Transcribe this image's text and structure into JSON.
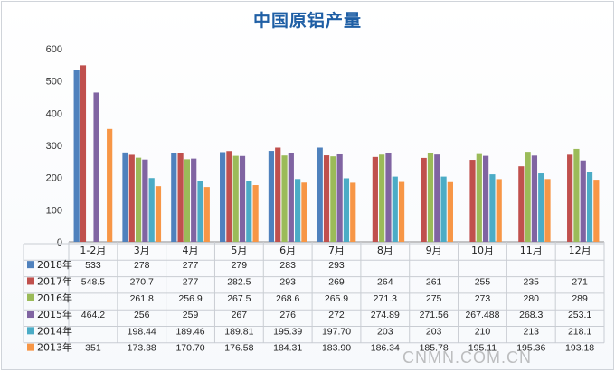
{
  "chart_data": {
    "type": "bar",
    "title": "中国原铝产量",
    "categories": [
      "1-2月",
      "3月",
      "4月",
      "5月",
      "6月",
      "7月",
      "8月",
      "9月",
      "10月",
      "11月",
      "12月"
    ],
    "ylim": [
      0,
      600
    ],
    "yticks": [
      0,
      100,
      200,
      300,
      400,
      500,
      600
    ],
    "grid": false,
    "legend_placement": "data-table-left",
    "series": [
      {
        "name": "2018年",
        "color": "#4f81bd",
        "values": [
          533,
          278,
          277,
          279,
          283,
          293,
          null,
          null,
          null,
          null,
          null
        ],
        "labels": [
          "533",
          "278",
          "277",
          "279",
          "283",
          "293",
          "",
          "",
          "",
          "",
          ""
        ]
      },
      {
        "name": "2017年",
        "color": "#c0504d",
        "values": [
          548.5,
          270.7,
          277,
          282.5,
          293,
          269,
          264,
          261,
          255,
          235,
          271
        ],
        "labels": [
          "548.5",
          "270.7",
          "277",
          "282.5",
          "293",
          "269",
          "264",
          "261",
          "255",
          "235",
          "271"
        ]
      },
      {
        "name": "2016年",
        "color": "#9bbb59",
        "values": [
          null,
          261.8,
          256.9,
          267.5,
          268.6,
          265.9,
          271.3,
          275,
          273,
          280,
          289
        ],
        "labels": [
          "",
          "261.8",
          "256.9",
          "267.5",
          "268.6",
          "265.9",
          "271.3",
          "275",
          "273",
          "280",
          "289"
        ]
      },
      {
        "name": "2015年",
        "color": "#8064a2",
        "values": [
          464.2,
          256,
          259,
          267,
          276,
          272,
          274.89,
          271.56,
          267.488,
          268.3,
          253.1
        ],
        "labels": [
          "464.2",
          "256",
          "259",
          "267",
          "276",
          "272",
          "274.89",
          "271.56",
          "267.488",
          "268.3",
          "253.1"
        ]
      },
      {
        "name": "2014年",
        "color": "#4bacc6",
        "values": [
          null,
          198.44,
          189.46,
          189.81,
          195.39,
          197.7,
          203,
          203,
          210,
          213,
          218.1
        ],
        "labels": [
          "",
          "198.44",
          "189.46",
          "189.81",
          "195.39",
          "197.70",
          "203",
          "203",
          "210",
          "213",
          "218.1"
        ]
      },
      {
        "name": "2013年",
        "color": "#f79646",
        "values": [
          351,
          173.38,
          170.7,
          176.58,
          184.31,
          183.9,
          186.34,
          185.78,
          195.11,
          195.36,
          193.18
        ],
        "labels": [
          "351",
          "173.38",
          "170.70",
          "176.58",
          "184.31",
          "183.90",
          "186.34",
          "185.78",
          "195.11",
          "195.36",
          "193.18"
        ]
      }
    ]
  },
  "watermark": "CNMN.COM.CN"
}
